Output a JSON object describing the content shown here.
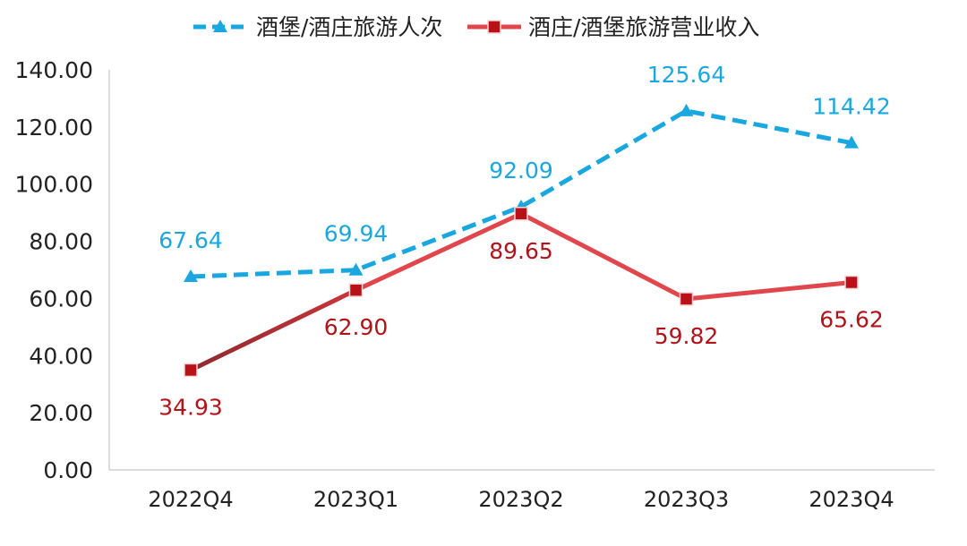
{
  "chart_data": {
    "type": "line",
    "title": "",
    "xlabel": "",
    "ylabel": "",
    "categories": [
      "2022Q4",
      "2023Q1",
      "2023Q2",
      "2023Q3",
      "2023Q4"
    ],
    "ylim": [
      0,
      140
    ],
    "yticks": [
      "0.00",
      "20.00",
      "40.00",
      "60.00",
      "80.00",
      "100.00",
      "120.00",
      "140.00"
    ],
    "grid": false,
    "legend_position": "top-center",
    "series": [
      {
        "name": "酒堡/酒庄旅游人次",
        "values": [
          67.64,
          69.94,
          92.09,
          125.64,
          114.42
        ],
        "labels": [
          "67.64",
          "69.94",
          "92.09",
          "125.64",
          "114.42"
        ],
        "color": "#1aa7e0",
        "label_color": "#1aa7e0",
        "line_style": "dashed",
        "marker": "triangle",
        "label_position": "above"
      },
      {
        "name": "酒庄/酒堡旅游营业收入",
        "values": [
          34.93,
          62.9,
          89.65,
          59.82,
          65.62
        ],
        "labels": [
          "34.93",
          "62.90",
          "89.65",
          "59.82",
          "65.62"
        ],
        "color": "#e0474c",
        "label_color": "#b01419",
        "marker_color": "#b81218",
        "first_segment_color": "#9e2b30",
        "line_style": "solid",
        "marker": "square",
        "label_position": "below"
      }
    ]
  }
}
